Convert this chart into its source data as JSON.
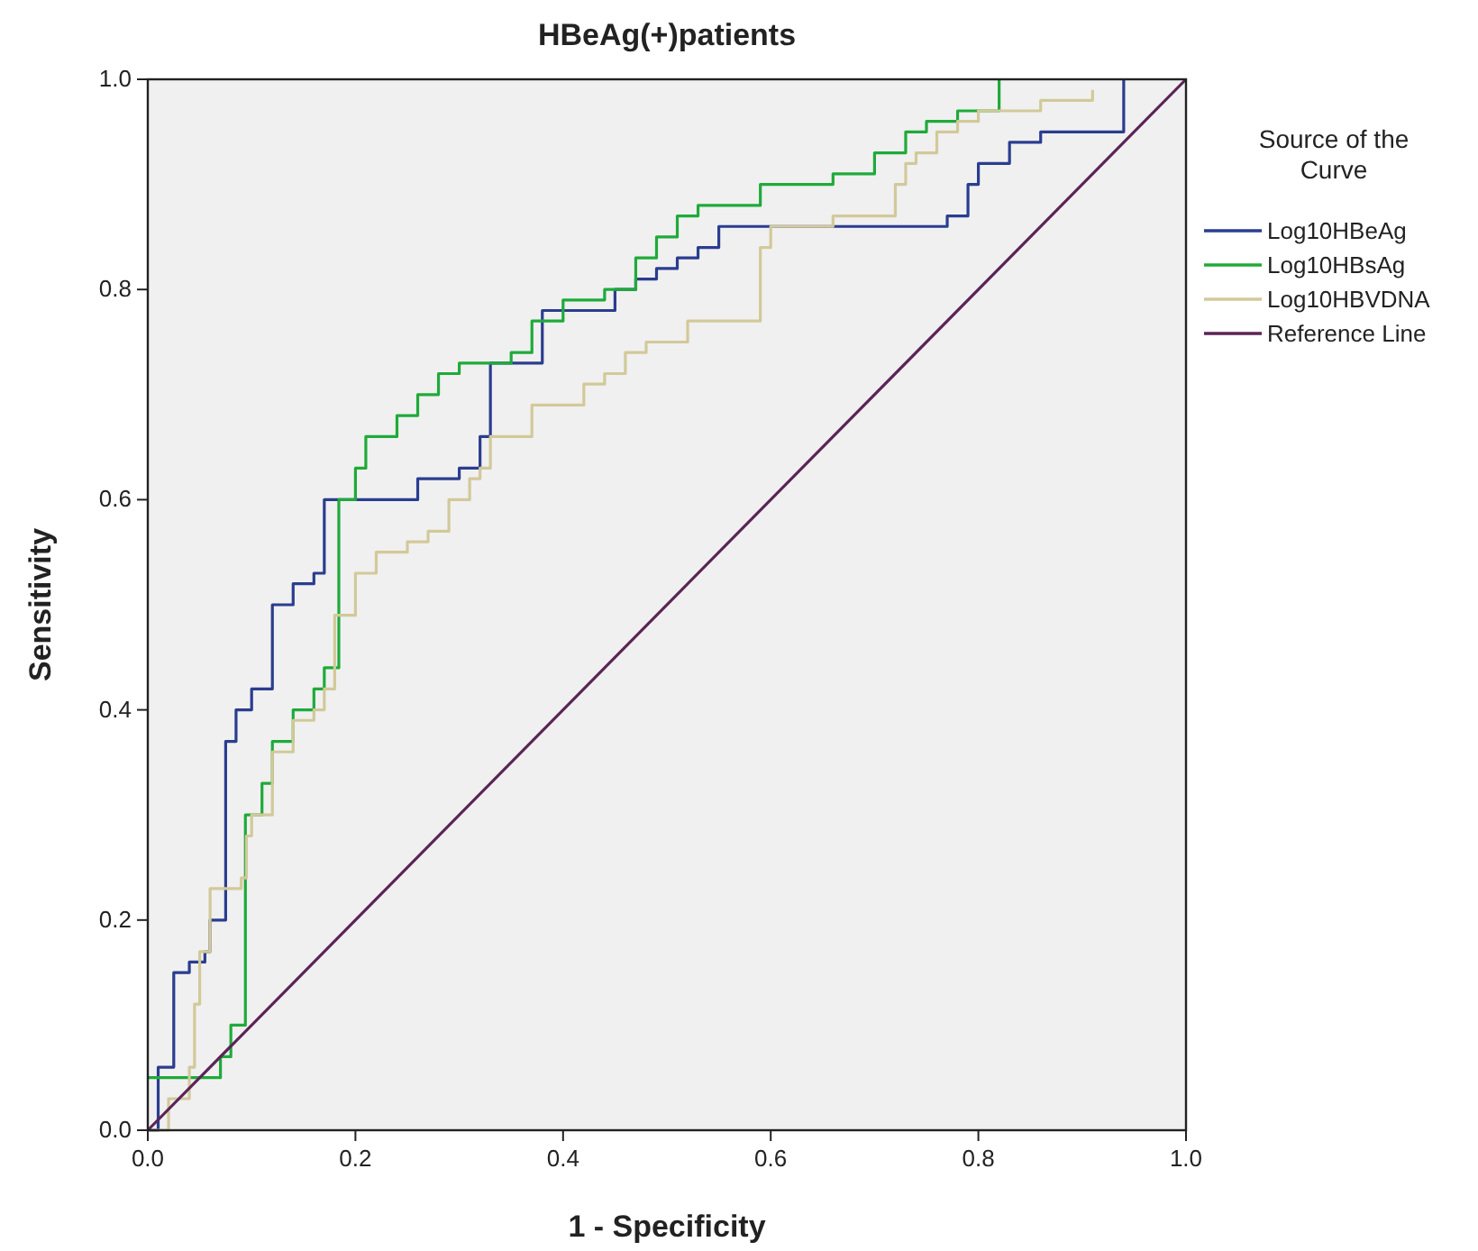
{
  "chart_data": {
    "type": "step",
    "title": "HBeAg(+)patients",
    "xlabel": "1 - Specificity",
    "ylabel": "Sensitivity",
    "legend_title": "Source of the Curve",
    "legend": "right",
    "grid": false,
    "marker": "none",
    "xlim": [
      0,
      1
    ],
    "ylim": [
      0,
      1
    ],
    "xticks": [
      {
        "value": 0,
        "label": "0.0"
      },
      {
        "value": 0.2,
        "label": "0.2"
      },
      {
        "value": 0.4,
        "label": "0.4"
      },
      {
        "value": 0.6,
        "label": "0.6"
      },
      {
        "value": 0.8,
        "label": "0.8"
      },
      {
        "value": 1,
        "label": "1.0"
      }
    ],
    "yticks": [
      {
        "value": 0,
        "label": "0.0"
      },
      {
        "value": 0.2,
        "label": "0.2"
      },
      {
        "value": 0.4,
        "label": "0.4"
      },
      {
        "value": 0.6,
        "label": "0.6"
      },
      {
        "value": 0.8,
        "label": "0.8"
      },
      {
        "value": 1,
        "label": "1.0"
      }
    ],
    "series": [
      {
        "name": "Log10HBeAg",
        "color": "#2a3d8f",
        "x": [
          0,
          0.01,
          0.025,
          0.04,
          0.055,
          0.06,
          0.075,
          0.085,
          0.1,
          0.12,
          0.14,
          0.16,
          0.17,
          0.26,
          0.3,
          0.32,
          0.33,
          0.38,
          0.45,
          0.47,
          0.49,
          0.51,
          0.53,
          0.55,
          0.77,
          0.79,
          0.8,
          0.83,
          0.86,
          0.94
        ],
        "values": [
          0,
          0.06,
          0.15,
          0.16,
          0.17,
          0.2,
          0.37,
          0.4,
          0.42,
          0.5,
          0.52,
          0.53,
          0.6,
          0.62,
          0.63,
          0.66,
          0.73,
          0.78,
          0.8,
          0.81,
          0.82,
          0.83,
          0.84,
          0.86,
          0.87,
          0.9,
          0.92,
          0.94,
          0.95,
          1
        ]
      },
      {
        "name": "Log10HBsAg",
        "color": "#1faa3a",
        "x": [
          0,
          0.07,
          0.08,
          0.094,
          0.11,
          0.12,
          0.14,
          0.16,
          0.17,
          0.184,
          0.2,
          0.21,
          0.24,
          0.26,
          0.28,
          0.3,
          0.35,
          0.37,
          0.4,
          0.44,
          0.47,
          0.49,
          0.51,
          0.53,
          0.59,
          0.66,
          0.7,
          0.73,
          0.75,
          0.78,
          0.82
        ],
        "values": [
          0.05,
          0.07,
          0.1,
          0.3,
          0.33,
          0.37,
          0.4,
          0.42,
          0.44,
          0.6,
          0.63,
          0.66,
          0.68,
          0.7,
          0.72,
          0.73,
          0.74,
          0.77,
          0.79,
          0.8,
          0.83,
          0.85,
          0.87,
          0.88,
          0.9,
          0.91,
          0.93,
          0.95,
          0.96,
          0.97,
          1
        ]
      },
      {
        "name": "Log10HBVDNA",
        "color": "#d2c99a",
        "x": [
          0,
          0.02,
          0.04,
          0.045,
          0.05,
          0.06,
          0.09,
          0.095,
          0.1,
          0.12,
          0.14,
          0.16,
          0.17,
          0.18,
          0.2,
          0.22,
          0.25,
          0.27,
          0.29,
          0.31,
          0.32,
          0.33,
          0.37,
          0.42,
          0.44,
          0.46,
          0.48,
          0.52,
          0.59,
          0.6,
          0.66,
          0.72,
          0.73,
          0.74,
          0.76,
          0.78,
          0.8,
          0.86,
          0.91
        ],
        "values": [
          0,
          0.03,
          0.06,
          0.12,
          0.17,
          0.23,
          0.24,
          0.28,
          0.3,
          0.36,
          0.39,
          0.4,
          0.42,
          0.49,
          0.53,
          0.55,
          0.56,
          0.57,
          0.6,
          0.62,
          0.63,
          0.66,
          0.69,
          0.71,
          0.72,
          0.74,
          0.75,
          0.77,
          0.84,
          0.86,
          0.87,
          0.9,
          0.92,
          0.93,
          0.95,
          0.96,
          0.97,
          0.98,
          0.99
        ]
      },
      {
        "name": "Reference Line",
        "type": "line",
        "color": "#5b2456",
        "x": [
          0,
          1
        ],
        "values": [
          0,
          1
        ]
      }
    ]
  }
}
